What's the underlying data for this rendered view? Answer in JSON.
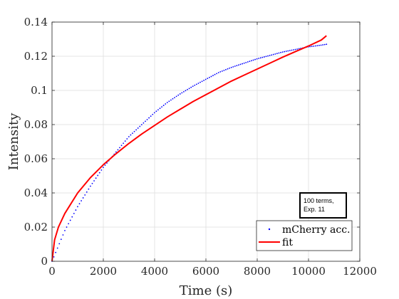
{
  "chart_data": {
    "type": "scatter",
    "xlabel": "Time (s)",
    "ylabel": "Intensity",
    "xlim": [
      0,
      12000
    ],
    "ylim": [
      0,
      0.14
    ],
    "xticks": [
      0,
      2000,
      4000,
      6000,
      8000,
      10000,
      12000
    ],
    "yticks": [
      0,
      0.02,
      0.04,
      0.06,
      0.08,
      0.1,
      0.12,
      0.14
    ],
    "xtick_labels": [
      "0",
      "2000",
      "4000",
      "6000",
      "8000",
      "10000",
      "12000"
    ],
    "ytick_labels": [
      "0",
      "0.02",
      "0.04",
      "0.06",
      "0.08",
      "0.1",
      "0.12",
      "0.14"
    ],
    "grid": true,
    "legend_position": "bottom-right",
    "annotation": [
      "100 terms,",
      "Exp. 11"
    ],
    "series": [
      {
        "name": "mCherry acc.",
        "style": "dots",
        "color": "#0000ff",
        "x": [
          0,
          500,
          1000,
          1500,
          2000,
          2500,
          3000,
          3500,
          4000,
          4500,
          5000,
          5500,
          6000,
          6500,
          7000,
          7500,
          8000,
          8500,
          9000,
          9500,
          10000,
          10500,
          10700
        ],
        "y": [
          0,
          0.018,
          0.032,
          0.044,
          0.055,
          0.064,
          0.073,
          0.08,
          0.087,
          0.093,
          0.098,
          0.1025,
          0.1065,
          0.1105,
          0.1135,
          0.116,
          0.1185,
          0.1205,
          0.1225,
          0.124,
          0.1255,
          0.1265,
          0.127
        ]
      },
      {
        "name": "fit",
        "style": "line",
        "color": "#ff0000",
        "x": [
          0,
          100,
          250,
          500,
          1000,
          1500,
          2000,
          2500,
          3000,
          3500,
          4000,
          4500,
          5000,
          5500,
          6000,
          6500,
          7000,
          7500,
          8000,
          8500,
          9000,
          9500,
          10000,
          10500,
          10700
        ],
        "y": [
          0,
          0.0125,
          0.02,
          0.028,
          0.04,
          0.049,
          0.0565,
          0.063,
          0.069,
          0.0745,
          0.0795,
          0.0845,
          0.089,
          0.0935,
          0.0975,
          0.1015,
          0.1055,
          0.109,
          0.1125,
          0.116,
          0.1195,
          0.1228,
          0.126,
          0.1295,
          0.132
        ]
      }
    ]
  }
}
